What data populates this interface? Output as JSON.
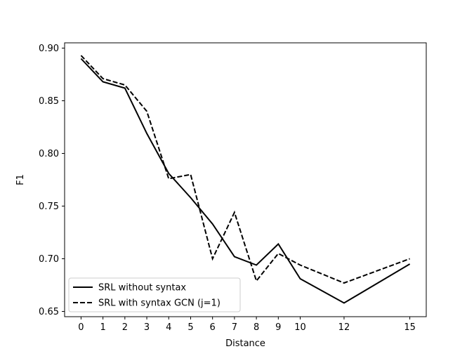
{
  "chart_data": {
    "type": "line",
    "title": "",
    "xlabel": "Distance",
    "ylabel": "F1",
    "xlim": [
      -0.75,
      15.75
    ],
    "ylim": [
      0.645,
      0.905
    ],
    "x": [
      0,
      1,
      2,
      3,
      4,
      5,
      6,
      7,
      8,
      9,
      10,
      12,
      15
    ],
    "x_ticks": [
      "0",
      "1",
      "2",
      "3",
      "4",
      "5",
      "6",
      "7",
      "8",
      "9",
      "10",
      "12",
      "15"
    ],
    "y_ticks": [
      "0.65",
      "0.70",
      "0.75",
      "0.80",
      "0.85",
      "0.90"
    ],
    "grid": false,
    "legend_position": "lower-left",
    "series": [
      {
        "name": "SRL without syntax",
        "style": "solid",
        "color": "#000000",
        "values": [
          0.89,
          0.868,
          0.862,
          0.819,
          0.781,
          0.758,
          0.733,
          0.702,
          0.694,
          0.714,
          0.681,
          0.658,
          0.695
        ]
      },
      {
        "name": "SRL with syntax GCN (j=1)",
        "style": "dashed",
        "color": "#000000",
        "values": [
          0.893,
          0.871,
          0.865,
          0.84,
          0.776,
          0.78,
          0.7,
          0.744,
          0.679,
          0.705,
          0.694,
          0.677,
          0.7
        ]
      }
    ]
  }
}
